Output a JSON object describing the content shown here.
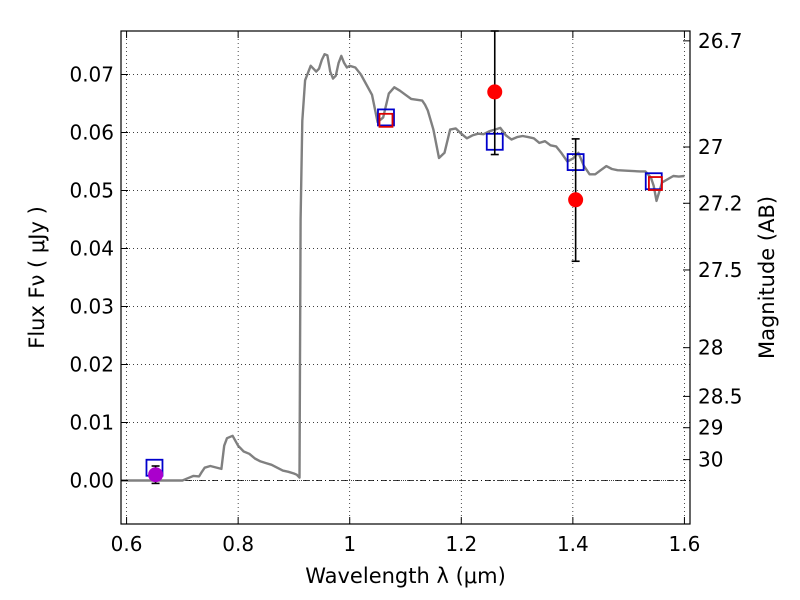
{
  "chart_data": {
    "type": "scatter",
    "xlabel": "Wavelength  λ (μm)",
    "ylabel": "Flux  Fν ( μJy )",
    "ylabel_right": "Magnitude (AB)",
    "xlim": [
      0.59,
      1.61
    ],
    "ylim": [
      -0.0075,
      0.0775
    ],
    "grid": true,
    "x_ticks": [
      0.6,
      0.8,
      1.0,
      1.2,
      1.4,
      1.6
    ],
    "x_tick_labels": [
      "0.6",
      "0.8",
      "1",
      "1.2",
      "1.4",
      "1.6"
    ],
    "y_ticks": [
      0.0,
      0.01,
      0.02,
      0.03,
      0.04,
      0.05,
      0.06,
      0.07
    ],
    "y_tick_labels": [
      "0.00",
      "0.01",
      "0.02",
      "0.03",
      "0.04",
      "0.05",
      "0.06",
      "0.07"
    ],
    "right_axis_ticks": [
      {
        "label": "26.7",
        "flux": 0.0758
      },
      {
        "label": "27",
        "flux": 0.0575
      },
      {
        "label": "27.2",
        "flux": 0.0478
      },
      {
        "label": "27.5",
        "flux": 0.0363
      },
      {
        "label": "28",
        "flux": 0.0229
      },
      {
        "label": "28.5",
        "flux": 0.0145
      },
      {
        "label": "29",
        "flux": 0.0091
      },
      {
        "label": "30",
        "flux": 0.0036
      }
    ],
    "series": [
      {
        "kind": "line",
        "color": "#808080",
        "x": [
          0.59,
          0.7,
          0.71,
          0.72,
          0.73,
          0.735,
          0.74,
          0.75,
          0.77,
          0.775,
          0.78,
          0.79,
          0.8,
          0.81,
          0.82,
          0.83,
          0.84,
          0.85,
          0.86,
          0.87,
          0.88,
          0.89,
          0.9,
          0.905,
          0.91,
          0.912,
          0.915,
          0.92,
          0.93,
          0.94,
          0.945,
          0.95,
          0.955,
          0.96,
          0.965,
          0.97,
          0.975,
          0.98,
          0.985,
          0.99,
          0.995,
          1.0,
          1.01,
          1.02,
          1.04,
          1.05,
          1.06,
          1.07,
          1.08,
          1.09,
          1.1,
          1.11,
          1.13,
          1.135,
          1.14,
          1.15,
          1.16,
          1.17,
          1.18,
          1.19,
          1.2,
          1.21,
          1.22,
          1.23,
          1.24,
          1.25,
          1.26,
          1.27,
          1.28,
          1.29,
          1.3,
          1.31,
          1.32,
          1.33,
          1.34,
          1.35,
          1.36,
          1.37,
          1.38,
          1.39,
          1.4,
          1.41,
          1.42,
          1.43,
          1.44,
          1.45,
          1.46,
          1.47,
          1.48,
          1.5,
          1.52,
          1.53,
          1.54,
          1.545,
          1.55,
          1.56,
          1.58,
          1.59,
          1.6
        ],
        "y": [
          0.0,
          0.0,
          0.0004,
          0.0008,
          0.0007,
          0.0015,
          0.0022,
          0.0025,
          0.002,
          0.006,
          0.0073,
          0.0077,
          0.006,
          0.005,
          0.0046,
          0.0038,
          0.0033,
          0.003,
          0.0027,
          0.0022,
          0.0017,
          0.0015,
          0.0012,
          0.001,
          0.0005,
          0.045,
          0.062,
          0.069,
          0.0715,
          0.0705,
          0.071,
          0.0725,
          0.0735,
          0.0733,
          0.0705,
          0.0693,
          0.0698,
          0.072,
          0.0732,
          0.072,
          0.0712,
          0.0715,
          0.0712,
          0.07,
          0.0665,
          0.0618,
          0.0626,
          0.0667,
          0.0678,
          0.0672,
          0.0665,
          0.0658,
          0.0655,
          0.0648,
          0.0638,
          0.0605,
          0.0556,
          0.0565,
          0.0605,
          0.0607,
          0.0598,
          0.059,
          0.0595,
          0.0598,
          0.0597,
          0.0602,
          0.0605,
          0.0608,
          0.0595,
          0.0588,
          0.0592,
          0.0594,
          0.0592,
          0.059,
          0.0582,
          0.0585,
          0.0578,
          0.0576,
          0.0564,
          0.055,
          0.0555,
          0.0565,
          0.0542,
          0.0528,
          0.0528,
          0.0535,
          0.0542,
          0.0537,
          0.0535,
          0.0534,
          0.0533,
          0.0533,
          0.0522,
          0.0508,
          0.0482,
          0.0514,
          0.0525,
          0.0524,
          0.0525
        ]
      },
      {
        "kind": "open-square",
        "color": "#0000cc",
        "x": [
          0.65,
          1.065,
          1.26,
          1.405,
          1.545
        ],
        "y": [
          0.0022,
          0.0626,
          0.0584,
          0.0549,
          0.0516
        ]
      },
      {
        "kind": "open-square",
        "color": "#dd0000",
        "x": [
          1.065,
          1.548
        ],
        "y": [
          0.0621,
          0.0512
        ]
      },
      {
        "kind": "filled-circle",
        "color": "#ff0000",
        "x": [
          1.26,
          1.405
        ],
        "y": [
          0.067,
          0.0484
        ],
        "err_low": [
          0.0562,
          0.0378
        ],
        "err_high": [
          0.0775,
          0.0589
        ]
      },
      {
        "kind": "filled-circle",
        "color": "#aa00cc",
        "x": [
          0.652
        ],
        "y": [
          0.001
        ],
        "err_low": [
          -0.0005
        ],
        "err_high": [
          0.0025
        ]
      }
    ],
    "reference_line": {
      "y": 0.0,
      "color": "#000000",
      "style": "dash-dot"
    }
  }
}
